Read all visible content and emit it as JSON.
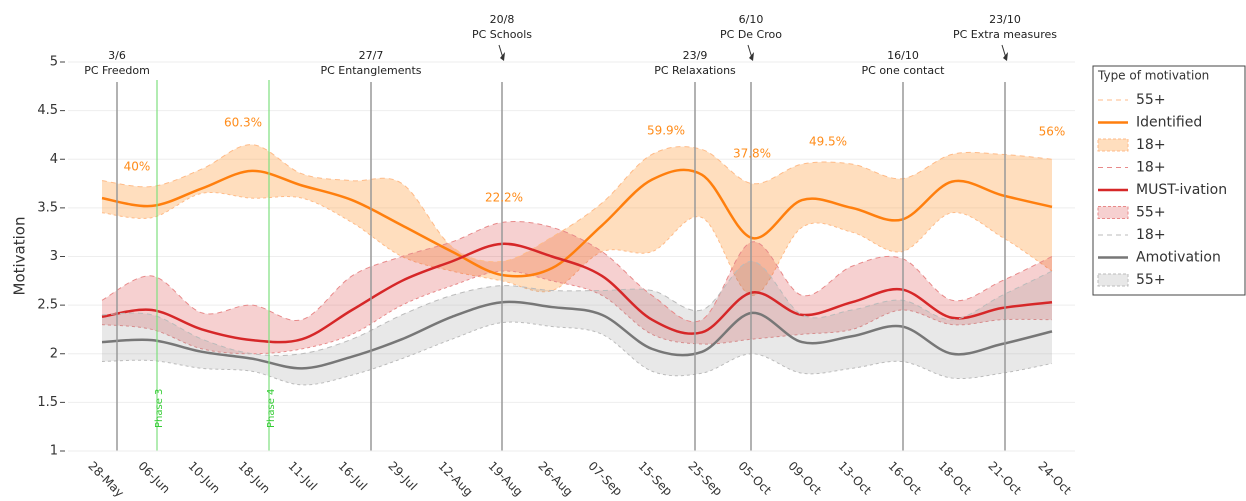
{
  "chart_data": {
    "type": "line",
    "y_label": "Motivation",
    "legend_title": "Type of motivation",
    "categories": [
      "28-May",
      "06-Jun",
      "10-Jun",
      "18-Jun",
      "11-Jul",
      "16-Jul",
      "29-Jul",
      "12-Aug",
      "19-Aug",
      "26-Aug",
      "07-Sep",
      "15-Sep",
      "25-Sep",
      "05-Oct",
      "09-Oct",
      "13-Oct",
      "16-Oct",
      "18-Oct",
      "21-Oct",
      "24-Oct"
    ],
    "ylim": [
      1,
      5
    ],
    "yticks": [
      1,
      1.5,
      2,
      2.5,
      3,
      3.5,
      4,
      4.5,
      5
    ],
    "grid": true,
    "series": [
      {
        "name": "55+",
        "style": "dash",
        "color": "#ffbb88",
        "values": [
          3.78,
          3.72,
          3.9,
          4.15,
          3.85,
          3.78,
          3.75,
          3.1,
          2.95,
          3.2,
          3.55,
          4.05,
          4.1,
          3.75,
          3.95,
          3.95,
          3.8,
          4.05,
          4.05,
          4.0
        ]
      },
      {
        "name": "Identified",
        "style": "solid",
        "color": "#ff7f0e",
        "values": [
          3.6,
          3.52,
          3.7,
          3.88,
          3.73,
          3.58,
          3.32,
          3.05,
          2.81,
          2.88,
          3.32,
          3.79,
          3.84,
          3.19,
          3.58,
          3.5,
          3.38,
          3.77,
          3.63,
          3.51
        ]
      },
      {
        "name": "18+",
        "style": "fill",
        "color": "rgba(255,160,70,0.35)",
        "values": [
          3.45,
          3.4,
          3.65,
          3.6,
          3.6,
          3.35,
          3.0,
          2.85,
          2.75,
          2.65,
          3.05,
          3.05,
          3.4,
          2.6,
          3.3,
          3.25,
          3.05,
          3.45,
          3.2,
          2.85
        ]
      },
      {
        "name": "18+",
        "style": "dash",
        "color": "#e88a8a",
        "values": [
          2.55,
          2.8,
          2.42,
          2.5,
          2.35,
          2.8,
          3.0,
          3.15,
          3.35,
          3.3,
          3.05,
          2.6,
          2.35,
          3.15,
          2.6,
          2.9,
          2.98,
          2.55,
          2.75,
          3.0
        ]
      },
      {
        "name": "MUST-ivation",
        "style": "solid",
        "color": "#d62728",
        "values": [
          2.38,
          2.45,
          2.25,
          2.14,
          2.15,
          2.45,
          2.75,
          2.95,
          3.13,
          3.0,
          2.8,
          2.35,
          2.22,
          2.63,
          2.4,
          2.53,
          2.66,
          2.37,
          2.47,
          2.53
        ]
      },
      {
        "name": "55+",
        "style": "fill",
        "color": "rgba(214,39,40,0.22)",
        "values": [
          2.3,
          2.25,
          2.05,
          2.0,
          2.05,
          2.2,
          2.5,
          2.7,
          2.85,
          2.75,
          2.6,
          2.2,
          2.1,
          2.15,
          2.2,
          2.25,
          2.45,
          2.3,
          2.35,
          2.35
        ]
      },
      {
        "name": "18+",
        "style": "dash",
        "color": "#bbbbbb",
        "values": [
          2.4,
          2.4,
          2.15,
          2.0,
          2.0,
          2.15,
          2.4,
          2.6,
          2.7,
          2.65,
          2.65,
          2.65,
          2.45,
          2.95,
          2.4,
          2.45,
          2.55,
          2.35,
          2.6,
          2.85
        ]
      },
      {
        "name": "Amotivation",
        "style": "solid",
        "color": "#777777",
        "values": [
          2.12,
          2.14,
          2.02,
          1.95,
          1.85,
          1.97,
          2.15,
          2.38,
          2.53,
          2.48,
          2.4,
          2.05,
          2.02,
          2.42,
          2.12,
          2.18,
          2.28,
          2.0,
          2.1,
          2.23
        ]
      },
      {
        "name": "55+",
        "style": "fill",
        "color": "rgba(150,150,150,0.22)",
        "values": [
          1.92,
          1.93,
          1.85,
          1.82,
          1.68,
          1.78,
          1.95,
          2.15,
          2.32,
          2.28,
          2.2,
          1.82,
          1.8,
          2.0,
          1.8,
          1.85,
          1.92,
          1.75,
          1.8,
          1.9
        ]
      }
    ],
    "events": [
      {
        "date": "3/6",
        "label": "PC Freedom"
      },
      {
        "date": "27/7",
        "label": "PC Entanglements"
      },
      {
        "date": "20/8",
        "label": "PC Schools"
      },
      {
        "date": "23/9",
        "label": "PC Relaxations"
      },
      {
        "date": "6/10",
        "label": "PC De Croo"
      },
      {
        "date": "16/10",
        "label": "PC one contact"
      },
      {
        "date": "23/10",
        "label": "PC Extra measures"
      }
    ],
    "phases": [
      "Phase 3",
      "Phase 4"
    ],
    "annotations": [
      "40%",
      "60.3%",
      "22.2%",
      "59.9%",
      "37.8%",
      "49.5%",
      "56%"
    ]
  }
}
